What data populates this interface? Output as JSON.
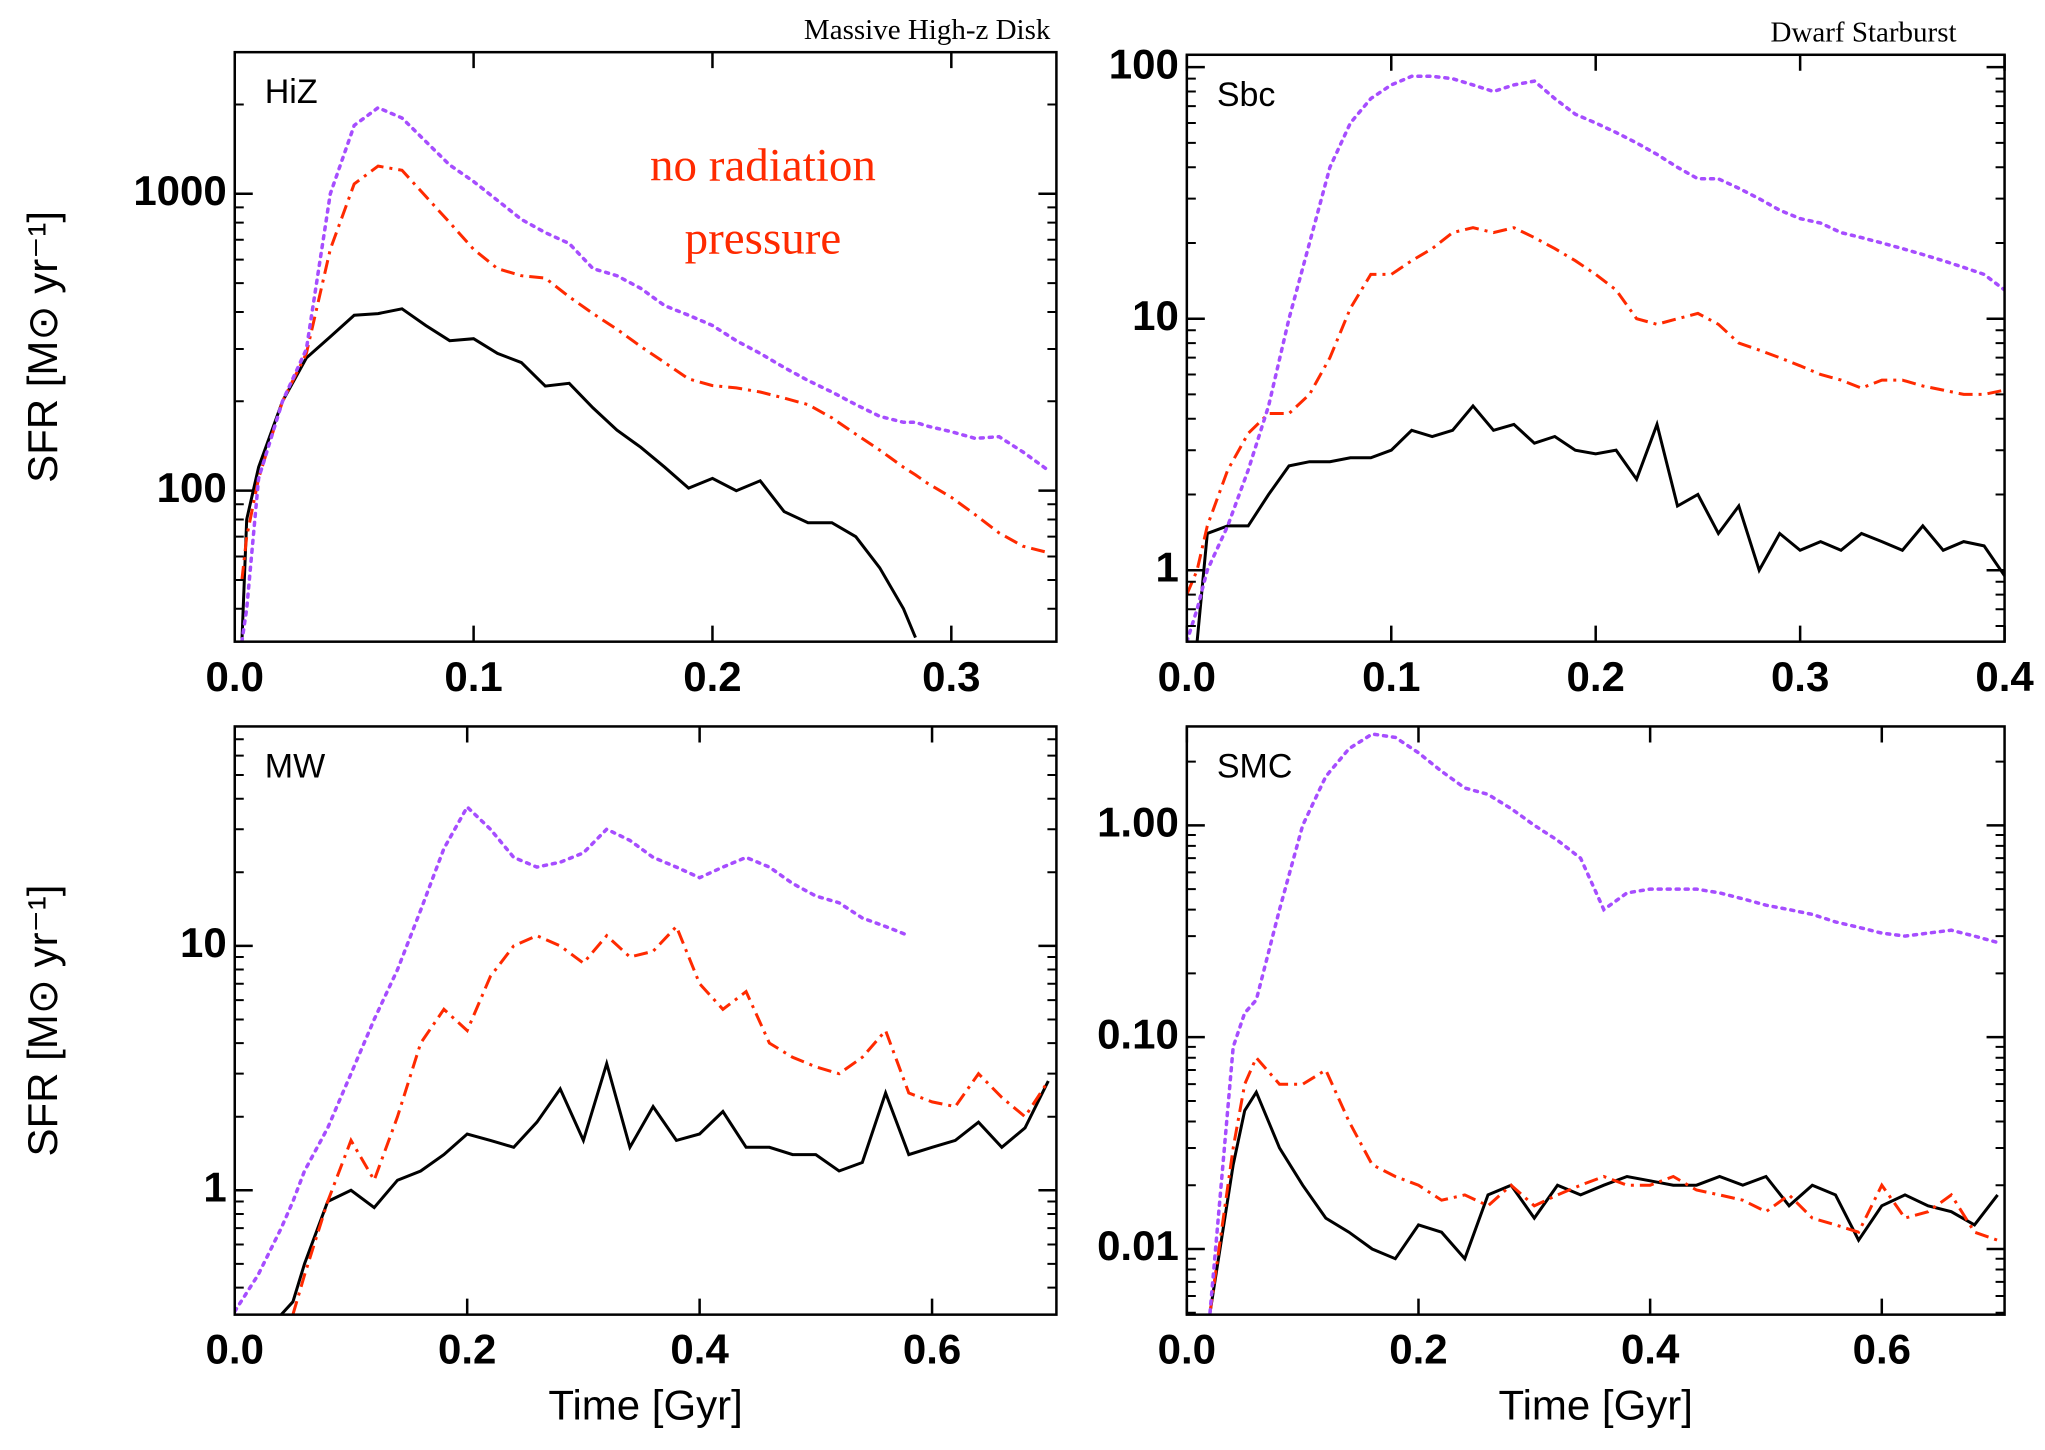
{
  "chart_data": [
    {
      "type": "line",
      "label": "HiZ",
      "subtitle": "Massive High-z Disk",
      "ylabel": "SFR  [M⊙ yr⁻¹]",
      "annotations": [
        "no radiation",
        "pressure"
      ],
      "annotation_color": "#ff2a00",
      "ylog": true,
      "xlim": [
        0,
        0.344
      ],
      "ylim": [
        31,
        3000
      ],
      "xticks": [
        {
          "value": 0,
          "label": "0.0"
        },
        0.1,
        0.2,
        0.3
      ],
      "yticks": [
        100,
        1000
      ],
      "x": [
        0.003,
        0.005,
        0.01,
        0.02,
        0.03,
        0.04,
        0.05,
        0.06,
        0.07,
        0.08,
        0.09,
        0.1,
        0.11,
        0.12,
        0.13,
        0.14,
        0.15,
        0.16,
        0.17,
        0.18,
        0.19,
        0.2,
        0.21,
        0.22,
        0.23,
        0.24,
        0.25,
        0.26,
        0.27,
        0.28,
        0.285,
        0.29,
        0.3,
        0.31,
        0.32,
        0.33,
        0.34
      ],
      "series": [
        {
          "color": "#000000",
          "linestyle": "solid",
          "values": [
            31,
            80,
            120,
            200,
            280,
            330,
            390,
            395,
            410,
            360,
            320,
            325,
            290,
            270,
            225,
            230,
            190,
            160,
            140,
            120,
            102,
            110,
            100,
            108,
            85,
            78,
            78,
            70,
            55,
            40,
            32,
            null,
            null,
            null,
            null,
            null,
            null
          ]
        },
        {
          "color": "#ff2a00",
          "linestyle": "dashdot",
          "values": [
            50,
            70,
            110,
            200,
            290,
            650,
            1080,
            1240,
            1200,
            980,
            800,
            650,
            560,
            530,
            520,
            450,
            395,
            350,
            306,
            270,
            238,
            226,
            222,
            215,
            205,
            195,
            176,
            155,
            137,
            120,
            113,
            106,
            95,
            83,
            72,
            65,
            62
          ]
        },
        {
          "color": "#a64dff",
          "linestyle": "dotted",
          "values": [
            31,
            40,
            110,
            200,
            300,
            1000,
            1700,
            1950,
            1800,
            1500,
            1250,
            1100,
            950,
            820,
            740,
            680,
            560,
            530,
            480,
            420,
            390,
            360,
            320,
            290,
            260,
            235,
            215,
            195,
            178,
            170,
            170,
            165,
            158,
            150,
            152,
            135,
            118
          ]
        }
      ]
    },
    {
      "type": "line",
      "label": "Sbc",
      "subtitle": "Dwarf Starburst",
      "ylog": true,
      "xlim": [
        0,
        0.4
      ],
      "ylim": [
        0.52,
        112
      ],
      "xticks": [
        {
          "value": 0,
          "label": "0.0"
        },
        0.1,
        0.2,
        0.3,
        0.4
      ],
      "yticks": [
        1,
        10,
        100
      ],
      "x": [
        0,
        0.005,
        0.01,
        0.02,
        0.03,
        0.04,
        0.05,
        0.06,
        0.07,
        0.08,
        0.09,
        0.1,
        0.11,
        0.12,
        0.13,
        0.14,
        0.15,
        0.16,
        0.17,
        0.18,
        0.19,
        0.2,
        0.21,
        0.22,
        0.23,
        0.24,
        0.25,
        0.26,
        0.27,
        0.28,
        0.29,
        0.3,
        0.31,
        0.32,
        0.33,
        0.34,
        0.35,
        0.36,
        0.37,
        0.38,
        0.39,
        0.4
      ],
      "series": [
        {
          "color": "#000000",
          "linestyle": "solid",
          "values": [
            null,
            0.52,
            1.4,
            1.5,
            1.5,
            2.0,
            2.6,
            2.7,
            2.7,
            2.8,
            2.8,
            3.0,
            3.6,
            3.4,
            3.6,
            4.5,
            3.6,
            3.8,
            3.2,
            3.4,
            3.0,
            2.9,
            3.0,
            2.3,
            3.8,
            1.8,
            2.0,
            1.4,
            1.8,
            1.0,
            1.4,
            1.2,
            1.3,
            1.2,
            1.4,
            1.3,
            1.2,
            1.5,
            1.2,
            1.3,
            1.25,
            0.95
          ]
        },
        {
          "color": "#ff2a00",
          "linestyle": "dashdot",
          "values": [
            0.8,
            1.0,
            1.5,
            2.5,
            3.5,
            4.2,
            4.2,
            5.0,
            7,
            11,
            15,
            15,
            17,
            19,
            22,
            23,
            22,
            23,
            21,
            19,
            17,
            15,
            13,
            10,
            9.5,
            10,
            10.5,
            9.5,
            8,
            7.5,
            7,
            6.5,
            6,
            5.7,
            5.3,
            5.7,
            5.7,
            5.4,
            5.2,
            5.0,
            5.0,
            5.2
          ]
        },
        {
          "color": "#a64dff",
          "linestyle": "dotted",
          "values": [
            0.52,
            0.7,
            1.0,
            1.5,
            2.5,
            4.5,
            10,
            20,
            40,
            60,
            75,
            85,
            92,
            92,
            90,
            85,
            80,
            85,
            88,
            75,
            65,
            60,
            55,
            50,
            45,
            40,
            36,
            36,
            33,
            30,
            27,
            25,
            24,
            22,
            21,
            20,
            19,
            18,
            17,
            16,
            15,
            13
          ]
        }
      ]
    },
    {
      "type": "line",
      "label": "MW",
      "ylabel": "SFR  [M⊙ yr⁻¹]",
      "xlabel": "Time  [Gyr]",
      "ylog": true,
      "xlim": [
        0,
        0.707
      ],
      "ylim": [
        0.31,
        79
      ],
      "xticks": [
        {
          "value": 0,
          "label": "0.0"
        },
        0.2,
        0.4,
        0.6
      ],
      "yticks": [
        1,
        10
      ],
      "x": [
        0,
        0.02,
        0.04,
        0.05,
        0.06,
        0.08,
        0.1,
        0.12,
        0.14,
        0.16,
        0.18,
        0.2,
        0.22,
        0.24,
        0.26,
        0.28,
        0.3,
        0.32,
        0.34,
        0.36,
        0.38,
        0.4,
        0.42,
        0.44,
        0.46,
        0.48,
        0.5,
        0.52,
        0.54,
        0.56,
        0.58,
        0.6,
        0.62,
        0.64,
        0.66,
        0.68,
        0.7
      ],
      "series": [
        {
          "color": "#000000",
          "linestyle": "solid",
          "values": [
            null,
            null,
            0.31,
            0.35,
            0.5,
            0.9,
            1.0,
            0.85,
            1.1,
            1.2,
            1.4,
            1.7,
            1.6,
            1.5,
            1.9,
            2.6,
            1.6,
            3.3,
            1.5,
            2.2,
            1.6,
            1.7,
            2.1,
            1.5,
            1.5,
            1.4,
            1.4,
            1.2,
            1.3,
            2.5,
            1.4,
            1.5,
            1.6,
            1.9,
            1.5,
            1.8,
            2.8
          ]
        },
        {
          "color": "#ff2a00",
          "linestyle": "dashdot",
          "values": [
            null,
            null,
            null,
            0.31,
            0.45,
            0.9,
            1.6,
            1.1,
            2.0,
            4,
            5.5,
            4.5,
            7.5,
            10,
            11,
            10,
            8.5,
            11,
            9,
            9.5,
            12,
            7,
            5.5,
            6.5,
            4,
            3.5,
            3.2,
            3.0,
            3.5,
            4.5,
            2.5,
            2.3,
            2.2,
            3.0,
            2.4,
            2.0,
            2.8
          ]
        },
        {
          "color": "#a64dff",
          "linestyle": "dotted",
          "values": [
            0.32,
            0.45,
            0.7,
            0.9,
            1.2,
            1.8,
            3,
            5,
            8,
            14,
            25,
            37,
            30,
            23,
            21,
            22,
            24,
            30,
            27,
            23,
            21,
            19,
            21,
            23,
            21,
            18,
            16,
            15,
            13,
            12,
            11,
            null,
            null,
            null,
            null,
            null,
            null
          ]
        }
      ]
    },
    {
      "type": "line",
      "label": "SMC",
      "xlabel": "Time  [Gyr]",
      "ylog": true,
      "xlim": [
        0,
        0.706
      ],
      "ylim": [
        0.0049,
        2.93
      ],
      "xticks": [
        {
          "value": 0,
          "label": "0.0"
        },
        0.2,
        0.4,
        0.6
      ],
      "yticks": [
        0.01,
        {
          "value": 0.1,
          "label": "0.10"
        },
        {
          "value": 1,
          "label": "1.00"
        }
      ],
      "x": [
        0,
        0.02,
        0.04,
        0.05,
        0.06,
        0.08,
        0.1,
        0.12,
        0.14,
        0.16,
        0.18,
        0.2,
        0.22,
        0.24,
        0.26,
        0.28,
        0.3,
        0.32,
        0.34,
        0.36,
        0.38,
        0.4,
        0.42,
        0.44,
        0.46,
        0.48,
        0.5,
        0.52,
        0.54,
        0.56,
        0.58,
        0.6,
        0.62,
        0.64,
        0.66,
        0.68,
        0.7
      ],
      "series": [
        {
          "color": "#000000",
          "linestyle": "solid",
          "values": [
            null,
            0.005,
            0.025,
            0.045,
            0.055,
            0.03,
            0.02,
            0.014,
            0.012,
            0.01,
            0.009,
            0.013,
            0.012,
            0.009,
            0.018,
            0.02,
            0.014,
            0.02,
            0.018,
            0.02,
            0.022,
            0.021,
            0.02,
            0.02,
            0.022,
            0.02,
            0.022,
            0.016,
            0.02,
            0.018,
            0.011,
            0.016,
            0.018,
            0.016,
            0.015,
            0.013,
            0.018
          ]
        },
        {
          "color": "#ff2a00",
          "linestyle": "dashdot",
          "values": [
            null,
            0.005,
            0.03,
            0.06,
            0.08,
            0.06,
            0.06,
            0.07,
            0.04,
            0.025,
            0.022,
            0.02,
            0.017,
            0.018,
            0.016,
            0.02,
            0.016,
            0.018,
            0.02,
            0.022,
            0.02,
            0.02,
            0.022,
            0.019,
            0.018,
            0.017,
            0.015,
            0.018,
            0.014,
            0.013,
            0.012,
            0.02,
            0.014,
            0.015,
            0.018,
            0.012,
            0.011
          ]
        },
        {
          "color": "#a64dff",
          "linestyle": "dotted",
          "values": [
            null,
            0.005,
            0.09,
            0.13,
            0.15,
            0.4,
            1.0,
            1.7,
            2.3,
            2.7,
            2.6,
            2.2,
            1.8,
            1.5,
            1.4,
            1.2,
            1.0,
            0.85,
            0.7,
            0.4,
            0.48,
            0.5,
            0.5,
            0.5,
            0.48,
            0.45,
            0.42,
            0.4,
            0.38,
            0.35,
            0.33,
            0.31,
            0.3,
            0.31,
            0.32,
            0.3,
            0.28
          ]
        }
      ]
    }
  ]
}
